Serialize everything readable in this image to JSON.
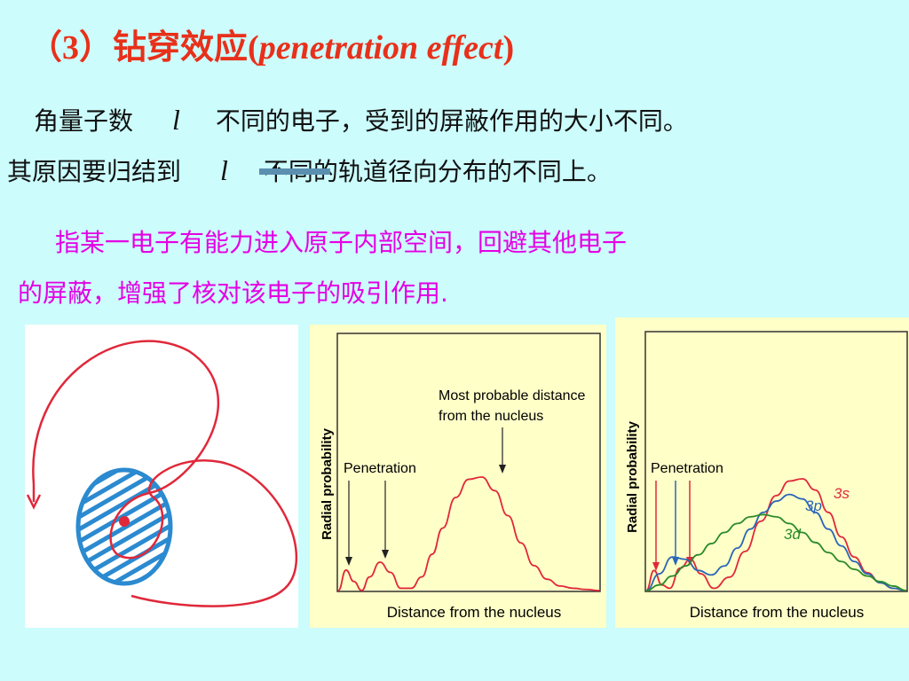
{
  "title": {
    "number": "（3）",
    "zh": "钻穿效应",
    "open_paren": "(",
    "en": "penetration  effect",
    "close_paren": ")"
  },
  "line1": {
    "pre": "角量子数",
    "symbol": "l",
    "post": "不同的电子，受到的屏蔽作用的大小不同。"
  },
  "line2": {
    "pre": "其原因要归结到",
    "symbol": "l",
    "post": "不同的轨道径向分布的不同上。"
  },
  "definition": {
    "line1": "指某一电子有能力进入原子内部空间，回避其他电子",
    "line2": "的屏蔽，增强了核对该电子的吸引作用."
  },
  "chart_data": [
    {
      "type": "line",
      "title": "",
      "xlabel": "Distance from the nucleus",
      "ylabel": "Radial probability",
      "annotations": [
        "Most probable distance from the nucleus",
        "Penetration"
      ],
      "series": [
        {
          "x": [
            0,
            0.3,
            0.6,
            0.9,
            1.2,
            1.6,
            2.0,
            2.4,
            2.8,
            3.2,
            3.6,
            4.0,
            4.5,
            5.0,
            5.5,
            6.0,
            6.5,
            7.0,
            7.5,
            8.0,
            8.5,
            9.0,
            9.5,
            10.0
          ],
          "y": [
            0,
            0.18,
            0.08,
            0,
            0.12,
            0.25,
            0.16,
            0.02,
            0.02,
            0.12,
            0.32,
            0.55,
            0.82,
            0.98,
            1.0,
            0.88,
            0.66,
            0.42,
            0.22,
            0.1,
            0.04,
            0.02,
            0.01,
            0
          ]
        }
      ]
    },
    {
      "type": "line",
      "title": "",
      "xlabel": "Distance from the nucleus",
      "ylabel": "Radial probability",
      "annotations": [
        "Penetration"
      ],
      "series": [
        {
          "name": "3s",
          "x": [
            0,
            0.3,
            0.6,
            0.9,
            1.3,
            1.7,
            2.1,
            2.6,
            3.2,
            3.8,
            4.4,
            5.0,
            5.5,
            6.0,
            6.5,
            7.0,
            7.5,
            8.0,
            8.5,
            9.0,
            9.5,
            10.0
          ],
          "y": [
            0,
            0.18,
            0.05,
            0.02,
            0.2,
            0.28,
            0.15,
            0.02,
            0.12,
            0.35,
            0.62,
            0.85,
            0.98,
            1.0,
            0.9,
            0.7,
            0.48,
            0.3,
            0.16,
            0.07,
            0.02,
            0
          ]
        },
        {
          "name": "3p",
          "x": [
            0,
            0.5,
            1.0,
            1.5,
            2.0,
            2.5,
            3.0,
            3.5,
            4.0,
            4.5,
            5.0,
            5.5,
            6.0,
            6.5,
            7.0,
            7.5,
            8.0,
            8.5,
            9.0,
            9.5,
            10.0
          ],
          "y": [
            0,
            0.15,
            0.3,
            0.28,
            0.18,
            0.14,
            0.22,
            0.38,
            0.55,
            0.7,
            0.8,
            0.86,
            0.82,
            0.7,
            0.55,
            0.4,
            0.26,
            0.15,
            0.07,
            0.02,
            0
          ]
        },
        {
          "name": "3d",
          "x": [
            0,
            0.5,
            1.0,
            1.5,
            2.0,
            2.5,
            3.0,
            3.5,
            4.0,
            4.5,
            5.0,
            5.5,
            6.0,
            6.5,
            7.0,
            7.5,
            8.0,
            8.5,
            9.0,
            9.5,
            10.0
          ],
          "y": [
            0,
            0.05,
            0.13,
            0.22,
            0.32,
            0.42,
            0.52,
            0.6,
            0.66,
            0.68,
            0.66,
            0.6,
            0.52,
            0.43,
            0.34,
            0.26,
            0.19,
            0.13,
            0.08,
            0.04,
            0
          ]
        }
      ]
    }
  ],
  "colors": {
    "background": "#ccfcfc",
    "title": "#e8301a",
    "definition": "#e400e4",
    "chart_bg": "#ffffc8",
    "s_orbital": "#e0283a",
    "p_orbital": "#2a66b8",
    "d_orbital": "#2a8a2a",
    "shield": "#2b8ad0"
  }
}
